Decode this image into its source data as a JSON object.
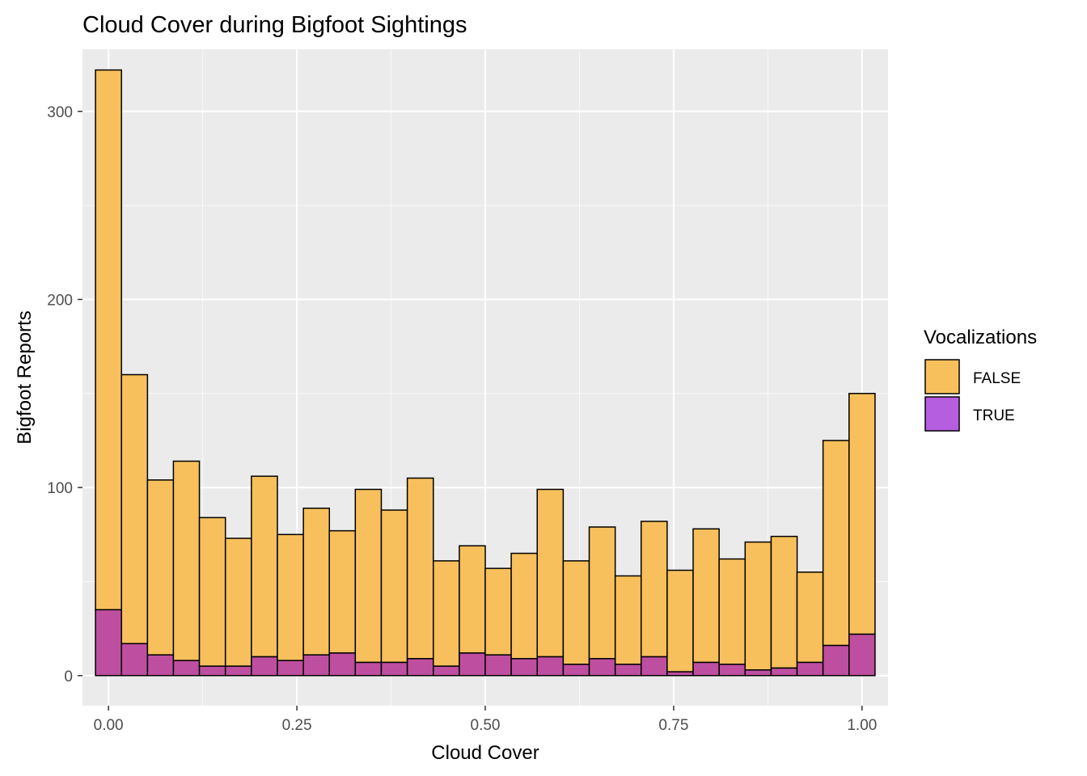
{
  "chart_data": {
    "type": "bar",
    "stacked": true,
    "title": "Cloud Cover during Bigfoot Sightings",
    "xlabel": "Cloud Cover",
    "ylabel": "Bigfoot Reports",
    "xlim": [
      -0.0345,
      1.0345
    ],
    "ylim": [
      -16,
      333
    ],
    "x_ticks": [
      {
        "value": 0.0,
        "label": "0.00"
      },
      {
        "value": 0.25,
        "label": "0.25"
      },
      {
        "value": 0.5,
        "label": "0.50"
      },
      {
        "value": 0.75,
        "label": "0.75"
      },
      {
        "value": 1.0,
        "label": "1.00"
      }
    ],
    "y_ticks": [
      {
        "value": 0,
        "label": "0"
      },
      {
        "value": 100,
        "label": "100"
      },
      {
        "value": 200,
        "label": "200"
      },
      {
        "value": 300,
        "label": "300"
      }
    ],
    "bin_width": 0.0345,
    "bin_centers": [
      0.0,
      0.0345,
      0.069,
      0.1034,
      0.1379,
      0.1724,
      0.2069,
      0.2414,
      0.2759,
      0.3103,
      0.3448,
      0.3793,
      0.4138,
      0.4483,
      0.4828,
      0.5172,
      0.5517,
      0.5862,
      0.6207,
      0.6552,
      0.6897,
      0.7241,
      0.7586,
      0.7931,
      0.8276,
      0.8621,
      0.8966,
      0.931,
      0.9655,
      1.0
    ],
    "legend": {
      "title": "Vocalizations",
      "position": "right",
      "entries": [
        {
          "label": "FALSE",
          "color": "#f7c05c"
        },
        {
          "label": "TRUE",
          "color": "#b65ee0"
        }
      ]
    },
    "series": [
      {
        "name": "FALSE",
        "color": "#f7c05c",
        "values": [
          287,
          143,
          93,
          106,
          79,
          68,
          96,
          67,
          78,
          65,
          92,
          81,
          96,
          56,
          57,
          46,
          56,
          89,
          55,
          70,
          47,
          72,
          54,
          71,
          56,
          68,
          70,
          48,
          109,
          128
        ]
      },
      {
        "name": "TRUE",
        "color": "#b65ee0",
        "values": [
          35,
          17,
          11,
          8,
          5,
          5,
          10,
          8,
          11,
          12,
          7,
          7,
          9,
          5,
          12,
          11,
          9,
          10,
          6,
          9,
          6,
          10,
          2,
          7,
          6,
          3,
          4,
          7,
          16,
          22
        ]
      }
    ],
    "colors": {
      "panel_background": "#ebebeb",
      "grid_major": "#ffffff",
      "bar_outline": "#000000",
      "overlap_shade": "#be4fa0"
    },
    "grid": true
  }
}
